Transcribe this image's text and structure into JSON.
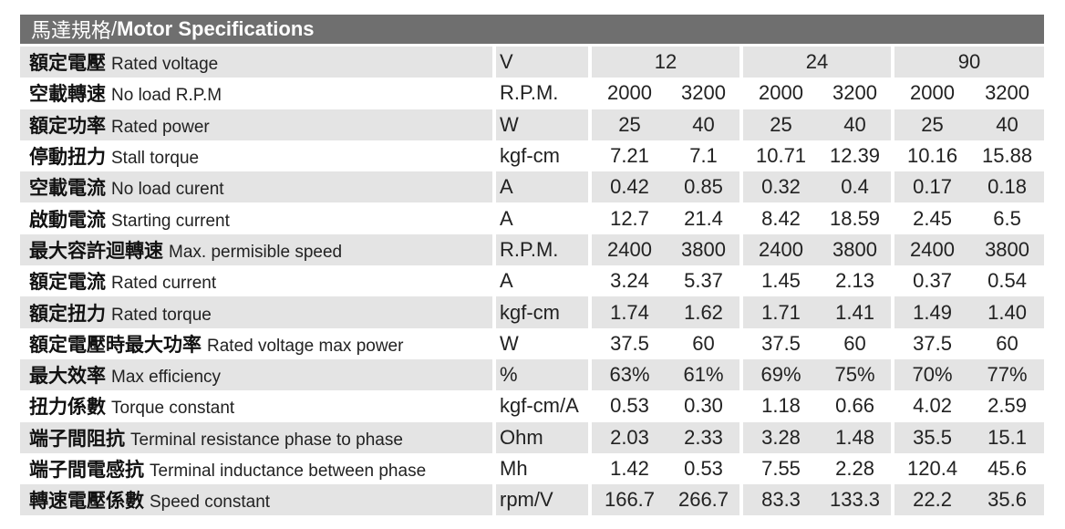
{
  "title": {
    "zh": "馬達規格",
    "separator": " / ",
    "en": "Motor Specifications"
  },
  "table": {
    "voltages": [
      "12",
      "24",
      "90"
    ],
    "rows": [
      {
        "zh": "空載轉速",
        "en": "No load R.P.M",
        "unit": "R.P.M.",
        "values": [
          "2000",
          "3200",
          "2000",
          "3200",
          "2000",
          "3200"
        ]
      },
      {
        "zh": "額定功率",
        "en": "Rated power",
        "unit": "W",
        "values": [
          "25",
          "40",
          "25",
          "40",
          "25",
          "40"
        ]
      },
      {
        "zh": "停動扭力",
        "en": "Stall torque",
        "unit": "kgf-cm",
        "values": [
          "7.21",
          "7.1",
          "10.71",
          "12.39",
          "10.16",
          "15.88"
        ]
      },
      {
        "zh": "空載電流",
        "en": "No load curent",
        "unit": "A",
        "values": [
          "0.42",
          "0.85",
          "0.32",
          "0.4",
          "0.17",
          "0.18"
        ]
      },
      {
        "zh": "啟動電流",
        "en": "Starting current",
        "unit": "A",
        "values": [
          "12.7",
          "21.4",
          "8.42",
          "18.59",
          "2.45",
          "6.5"
        ]
      },
      {
        "zh": "最大容許迴轉速",
        "en": "Max. permisible speed",
        "unit": "R.P.M.",
        "values": [
          "2400",
          "3800",
          "2400",
          "3800",
          "2400",
          "3800"
        ]
      },
      {
        "zh": "額定電流",
        "en": "Rated current",
        "unit": "A",
        "values": [
          "3.24",
          "5.37",
          "1.45",
          "2.13",
          "0.37",
          "0.54"
        ]
      },
      {
        "zh": "額定扭力",
        "en": "Rated torque",
        "unit": "kgf-cm",
        "values": [
          "1.74",
          "1.62",
          "1.71",
          "1.41",
          "1.49",
          "1.40"
        ]
      },
      {
        "zh": "額定電壓時最大功率",
        "en": "Rated voltage max power",
        "unit": "W",
        "values": [
          "37.5",
          "60",
          "37.5",
          "60",
          "37.5",
          "60"
        ]
      },
      {
        "zh": "最大效率",
        "en": "Max efficiency",
        "unit": "%",
        "values": [
          "63%",
          "61%",
          "69%",
          "75%",
          "70%",
          "77%"
        ]
      },
      {
        "zh": "扭力係數",
        "en": "Torque constant",
        "unit": "kgf-cm/A",
        "values": [
          "0.53",
          "0.30",
          "1.18",
          "0.66",
          "4.02",
          "2.59"
        ]
      },
      {
        "zh": "端子間阻抗",
        "en": "Terminal resistance phase to phase",
        "unit": "Ohm",
        "values": [
          "2.03",
          "2.33",
          "3.28",
          "1.48",
          "35.5",
          "15.1"
        ]
      },
      {
        "zh": "端子間電感抗",
        "en": "Terminal inductance between phase",
        "unit": "Mh",
        "values": [
          "1.42",
          "0.53",
          "7.55",
          "2.28",
          "120.4",
          "45.6"
        ]
      },
      {
        "zh": "轉速電壓係數",
        "en": "Speed constant",
        "unit": "rpm/V",
        "values": [
          "166.7",
          "266.7",
          "83.3",
          "133.3",
          "22.2",
          "35.6"
        ]
      }
    ],
    "voltage_row": {
      "zh": "額定電壓",
      "en": "Rated voltage",
      "unit": "V"
    }
  }
}
